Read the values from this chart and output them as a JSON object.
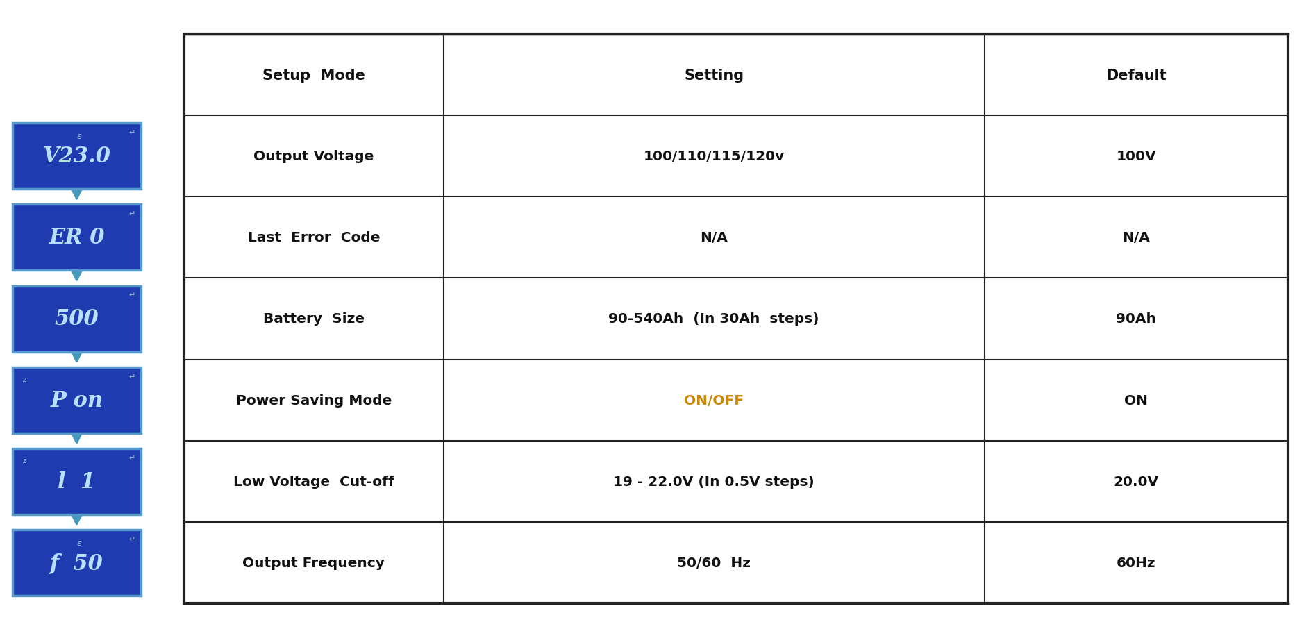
{
  "table_headers": [
    "Setup  Mode",
    "Setting",
    "Default"
  ],
  "table_rows": [
    [
      "Output Voltage",
      "100/110/115/120v",
      "100V"
    ],
    [
      "Last  Error  Code",
      "N/A",
      "N/A"
    ],
    [
      "Battery  Size",
      "90-540Ah  (In 30Ah  steps)",
      "90Ah"
    ],
    [
      "Power Saving Mode",
      "ON/OFF",
      "ON"
    ],
    [
      "Low Voltage  Cut-off",
      "19 - 22.0V (In 0.5V steps)",
      "20.0V"
    ],
    [
      "Output Frequency",
      "50/60  Hz",
      "60Hz"
    ]
  ],
  "lcd_labels": [
    "V23.0",
    "ER 0",
    "500",
    "P on",
    "l  1",
    "f  50"
  ],
  "lcd_symbols_top": [
    "e",
    "",
    "",
    "z",
    "z",
    "e"
  ],
  "lcd_bg_color": "#1e3bb0",
  "lcd_border_color": "#5599cc",
  "lcd_text_color": "#b8e0f8",
  "arrow_color": "#4499bb",
  "table_header_fontsize": 15,
  "table_row_fontsize": 14.5,
  "settings_col1_color": "#cc8800",
  "default_col_color": "#111111",
  "bg_color": "#ffffff",
  "table_border_color": "#222222",
  "col_proportions": [
    0.235,
    0.49,
    0.275
  ]
}
